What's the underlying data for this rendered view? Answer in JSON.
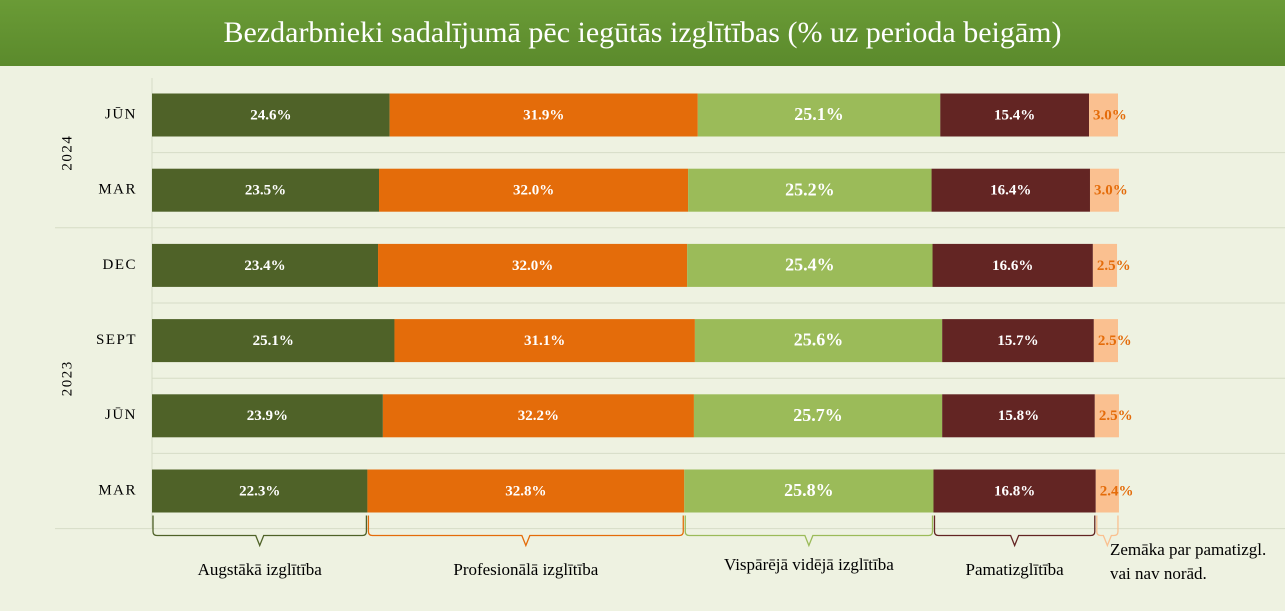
{
  "chart_data": {
    "type": "stacked-bar-horizontal",
    "title": "Bezdarbnieki sadalījumā pēc iegūtās izglītības (% uz perioda beigām)",
    "groups": [
      {
        "name": "2024",
        "categories": [
          "JŪN",
          "MAR"
        ]
      },
      {
        "name": "2023",
        "categories": [
          "DEC",
          "SEPT",
          "JŪN",
          "MAR"
        ]
      }
    ],
    "xlim": [
      0,
      100
    ],
    "series": [
      {
        "name": "Augstākā izglītība",
        "color": "#4f6228",
        "label_color": "#ffffff",
        "values": [
          24.6,
          23.5,
          23.4,
          25.1,
          23.9,
          22.3
        ],
        "value_labels": [
          "24.6%",
          "23.5%",
          "23.4%",
          "25.1%",
          "23.9%",
          "22.3%"
        ]
      },
      {
        "name": "Profesionālā izglītība",
        "color": "#e46c0a",
        "label_color": "#ffffff",
        "values": [
          31.9,
          32.0,
          32.0,
          31.1,
          32.2,
          32.8
        ],
        "value_labels": [
          "31.9%",
          "32.0%",
          "32.0%",
          "31.1%",
          "32.2%",
          "32.8%"
        ]
      },
      {
        "name": "Vispārējā vidējā izglītība",
        "color": "#9bbb59",
        "label_color": "#ffffff",
        "values": [
          25.1,
          25.2,
          25.4,
          25.6,
          25.7,
          25.8
        ],
        "value_labels": [
          "25.1%",
          "25.2%",
          "25.4%",
          "25.6%",
          "25.7%",
          "25.8%"
        ]
      },
      {
        "name": "Pamatizglītība",
        "color": "#632523",
        "label_color": "#ffffff",
        "values": [
          15.4,
          16.4,
          16.6,
          15.7,
          15.8,
          16.8
        ],
        "value_labels": [
          "15.4%",
          "16.4%",
          "16.6%",
          "15.7%",
          "15.8%",
          "16.8%"
        ]
      },
      {
        "name": "Zemāka par pamatizgl. vai nav norād.",
        "color": "#fac090",
        "label_color": "#e46c0a",
        "values": [
          3.0,
          3.0,
          2.5,
          2.5,
          2.5,
          2.4
        ],
        "value_labels": [
          "3.0%",
          "3.0%",
          "2.5%",
          "2.5%",
          "2.5%",
          "2.4%"
        ]
      }
    ]
  }
}
